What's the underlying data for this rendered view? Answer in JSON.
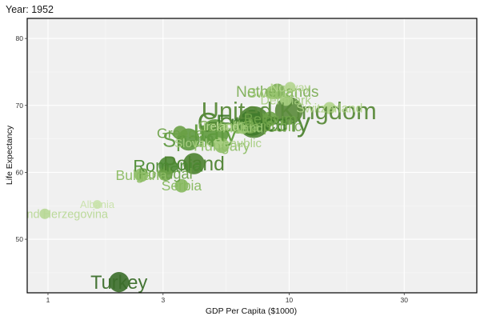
{
  "chart_data": {
    "type": "scatter",
    "title": "Year: 1952",
    "xlabel": "GDP Per Capita ($1000)",
    "ylabel": "Life Expectancy",
    "xscale": "log",
    "xlim": [
      0.82,
      60
    ],
    "ylim": [
      42,
      83
    ],
    "xticks": [
      1,
      3,
      10,
      30
    ],
    "xtick_labels": [
      "1",
      "3",
      "10",
      "30"
    ],
    "yticks": [
      50,
      60,
      70,
      80
    ],
    "ytick_labels": [
      "50",
      "60",
      "70",
      "80"
    ],
    "grid": true,
    "size_encodes": "population",
    "points": [
      {
        "label": "United Kingdom",
        "x": 9.98,
        "y": 69.2,
        "pop": 50.4,
        "color": "#5a8a3a"
      },
      {
        "label": "Germany",
        "x": 7.14,
        "y": 67.5,
        "pop": 69.1,
        "color": "#4f8433"
      },
      {
        "label": "France",
        "x": 7.03,
        "y": 67.4,
        "pop": 42.5,
        "color": "#3f7a2a"
      },
      {
        "label": "Italy",
        "x": 4.93,
        "y": 65.9,
        "pop": 47.7,
        "color": "#5e9a3c"
      },
      {
        "label": "Spain",
        "x": 3.83,
        "y": 64.9,
        "pop": 28.5,
        "color": "#5f9940"
      },
      {
        "label": "Poland",
        "x": 4.03,
        "y": 61.3,
        "pop": 25.7,
        "color": "#4d8230"
      },
      {
        "label": "Romania",
        "x": 3.14,
        "y": 61.0,
        "pop": 16.6,
        "color": "#4c8a33"
      },
      {
        "label": "Turkey",
        "x": 1.97,
        "y": 43.6,
        "pop": 22.2,
        "color": "#3b6e2a"
      },
      {
        "label": "Netherlands",
        "x": 8.94,
        "y": 72.1,
        "pop": 10.4,
        "color": "#7dae56"
      },
      {
        "label": "Norway",
        "x": 10.1,
        "y": 72.7,
        "pop": 3.3,
        "color": "#b4d58f"
      },
      {
        "label": "Sweden",
        "x": 8.53,
        "y": 71.9,
        "pop": 7.1,
        "color": "#98c46f"
      },
      {
        "label": "Denmark",
        "x": 9.69,
        "y": 70.8,
        "pop": 4.3,
        "color": "#a6cd80"
      },
      {
        "label": "Switzerland",
        "x": 14.7,
        "y": 69.6,
        "pop": 4.8,
        "color": "#b0d38a"
      },
      {
        "label": "Belgium",
        "x": 8.34,
        "y": 68.0,
        "pop": 8.7,
        "color": "#6ea348"
      },
      {
        "label": "Austria",
        "x": 6.14,
        "y": 66.8,
        "pop": 6.9,
        "color": "#8aba62"
      },
      {
        "label": "Greece",
        "x": 3.53,
        "y": 65.9,
        "pop": 7.7,
        "color": "#6aa046"
      },
      {
        "label": "Czech Republic",
        "x": 6.88,
        "y": 66.9,
        "pop": 9.1,
        "color": "#7aac52"
      },
      {
        "label": "Slovak Republic",
        "x": 5.07,
        "y": 64.4,
        "pop": 3.6,
        "color": "#a8ce82"
      },
      {
        "label": "Hungary",
        "x": 5.26,
        "y": 64.0,
        "pop": 9.5,
        "color": "#8fbe67"
      },
      {
        "label": "Ireland",
        "x": 5.21,
        "y": 66.9,
        "pop": 2.95,
        "color": "#b9d995"
      },
      {
        "label": "Finland",
        "x": 6.42,
        "y": 66.6,
        "pop": 4.1,
        "color": "#9dc876"
      },
      {
        "label": "Bulgaria",
        "x": 2.44,
        "y": 59.6,
        "pop": 7.3,
        "color": "#8cbc63"
      },
      {
        "label": "Portugal",
        "x": 3.07,
        "y": 59.8,
        "pop": 8.5,
        "color": "#6aa046"
      },
      {
        "label": "Serbia",
        "x": 3.58,
        "y": 58.0,
        "pop": 6.9,
        "color": "#86b85e"
      },
      {
        "label": "Albania",
        "x": 1.6,
        "y": 55.2,
        "pop": 1.3,
        "color": "#c8e2aa"
      },
      {
        "label": "Bosnia and Herzegovina",
        "x": 0.97,
        "y": 53.8,
        "pop": 2.8,
        "color": "#b8d896"
      }
    ]
  }
}
